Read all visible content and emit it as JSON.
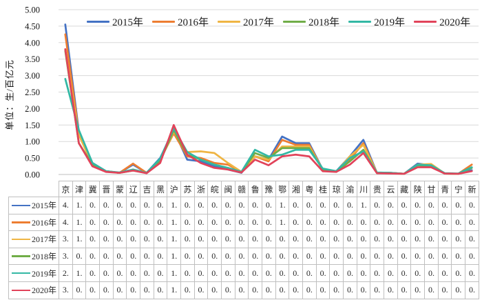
{
  "chart_data": {
    "type": "line",
    "title": "",
    "xlabel": "",
    "ylabel": "单位：生/百亿元",
    "ylim": [
      0,
      5
    ],
    "ytick_step": 0.5,
    "yticks": [
      "5.00",
      "4.50",
      "4.00",
      "3.50",
      "3.00",
      "2.50",
      "2.00",
      "1.50",
      "1.00",
      "0.50",
      "0.00"
    ],
    "grid": true,
    "legend_position": "top",
    "has_data_table": true,
    "categories": [
      "京",
      "津",
      "冀",
      "晋",
      "蒙",
      "辽",
      "吉",
      "黑",
      "沪",
      "苏",
      "浙",
      "皖",
      "闽",
      "赣",
      "鲁",
      "豫",
      "鄂",
      "湘",
      "粤",
      "桂",
      "琼",
      "渝",
      "川",
      "贵",
      "云",
      "藏",
      "陕",
      "甘",
      "青",
      "宁",
      "新"
    ],
    "series": [
      {
        "name": "2015年",
        "color": "#4472C4",
        "values": [
          4.55,
          1.3,
          0.35,
          0.1,
          0.05,
          0.3,
          0.05,
          0.5,
          1.35,
          0.45,
          0.4,
          0.25,
          0.15,
          0.05,
          0.55,
          0.45,
          1.15,
          0.95,
          0.95,
          0.15,
          0.1,
          0.55,
          1.05,
          0.05,
          0.05,
          0.02,
          0.33,
          0.28,
          0.03,
          0.02,
          0.13
        ]
      },
      {
        "name": "2016年",
        "color": "#ED7D31",
        "values": [
          4.25,
          1.25,
          0.3,
          0.1,
          0.05,
          0.33,
          0.05,
          0.45,
          1.25,
          0.55,
          0.5,
          0.35,
          0.3,
          0.08,
          0.55,
          0.4,
          1.05,
          0.9,
          0.9,
          0.15,
          0.1,
          0.45,
          0.95,
          0.05,
          0.05,
          0.02,
          0.3,
          0.3,
          0.03,
          0.02,
          0.3
        ]
      },
      {
        "name": "2017年",
        "color": "#EFB544",
        "values": [
          3.8,
          1.2,
          0.3,
          0.1,
          0.05,
          0.15,
          0.05,
          0.42,
          1.3,
          0.68,
          0.7,
          0.65,
          0.35,
          0.08,
          0.55,
          0.45,
          0.85,
          0.85,
          0.85,
          0.15,
          0.08,
          0.55,
          0.9,
          0.05,
          0.04,
          0.02,
          0.3,
          0.32,
          0.03,
          0.02,
          0.2
        ]
      },
      {
        "name": "2018年",
        "color": "#70AD47",
        "values": [
          3.75,
          0.95,
          0.3,
          0.1,
          0.05,
          0.12,
          0.05,
          0.4,
          1.35,
          0.6,
          0.45,
          0.3,
          0.2,
          0.06,
          0.65,
          0.5,
          0.8,
          0.8,
          0.8,
          0.15,
          0.08,
          0.4,
          0.75,
          0.05,
          0.04,
          0.02,
          0.28,
          0.25,
          0.03,
          0.02,
          0.2
        ]
      },
      {
        "name": "2019年",
        "color": "#33B8A4",
        "values": [
          2.9,
          1.35,
          0.35,
          0.1,
          0.06,
          0.15,
          0.05,
          0.48,
          1.4,
          0.68,
          0.45,
          0.3,
          0.2,
          0.08,
          0.75,
          0.55,
          0.6,
          0.75,
          0.75,
          0.18,
          0.1,
          0.5,
          0.7,
          0.06,
          0.05,
          0.02,
          0.3,
          0.28,
          0.04,
          0.03,
          0.22
        ]
      },
      {
        "name": "2020年",
        "color": "#E1435A",
        "values": [
          3.8,
          0.95,
          0.25,
          0.08,
          0.05,
          0.12,
          0.04,
          0.35,
          1.5,
          0.6,
          0.35,
          0.2,
          0.15,
          0.06,
          0.45,
          0.28,
          0.55,
          0.6,
          0.55,
          0.1,
          0.08,
          0.3,
          0.65,
          0.04,
          0.03,
          0.02,
          0.22,
          0.22,
          0.03,
          0.02,
          0.1
        ]
      }
    ]
  },
  "legend": {
    "items": [
      "2015年",
      "2016年",
      "2017年",
      "2018年",
      "2019年",
      "2020年"
    ]
  },
  "table": {
    "corner_label": "",
    "column_headers": [
      "京",
      "津",
      "冀",
      "晋",
      "蒙",
      "辽",
      "吉",
      "黑",
      "沪",
      "苏",
      "浙",
      "皖",
      "闽",
      "赣",
      "鲁",
      "豫",
      "鄂",
      "湘",
      "粤",
      "桂",
      "琼",
      "渝",
      "川",
      "贵",
      "云",
      "藏",
      "陕",
      "甘",
      "青",
      "宁",
      "新"
    ],
    "rows": [
      {
        "label": "2015年",
        "color": "#4472C4",
        "cells": [
          "4.",
          "1.",
          "0.",
          "0.",
          "0.",
          "0.",
          "0.",
          "0.",
          "1.",
          "0.",
          "0.",
          "0.",
          "0.",
          "0.",
          "0.",
          "0.",
          "1.",
          "0.",
          "0.",
          "0.",
          "0.",
          "0.",
          "1.",
          "0.",
          "0.",
          "0.",
          "0.",
          "0.",
          "0.",
          "0.",
          "0."
        ]
      },
      {
        "label": "2016年",
        "color": "#ED7D31",
        "cells": [
          "4.",
          "1.",
          "0.",
          "0.",
          "0.",
          "0.",
          "0.",
          "0.",
          "1.",
          "0.",
          "0.",
          "0.",
          "0.",
          "0.",
          "0.",
          "0.",
          "1.",
          "0.",
          "0.",
          "0.",
          "0.",
          "0.",
          "0.",
          "0.",
          "0.",
          "0.",
          "0.",
          "0.",
          "0.",
          "0.",
          "0."
        ]
      },
      {
        "label": "2017年",
        "color": "#EFB544",
        "cells": [
          "3.",
          "1.",
          "0.",
          "0.",
          "0.",
          "0.",
          "0.",
          "0.",
          "1.",
          "0.",
          "0.",
          "0.",
          "0.",
          "0.",
          "0.",
          "0.",
          "0.",
          "0.",
          "0.",
          "0.",
          "0.",
          "0.",
          "0.",
          "0.",
          "0.",
          "0.",
          "0.",
          "0.",
          "0.",
          "0.",
          "0."
        ]
      },
      {
        "label": "2018年",
        "color": "#70AD47",
        "cells": [
          "3.",
          "0.",
          "0.",
          "0.",
          "0.",
          "0.",
          "0.",
          "0.",
          "1.",
          "0.",
          "0.",
          "0.",
          "0.",
          "0.",
          "0.",
          "0.",
          "0.",
          "0.",
          "0.",
          "0.",
          "0.",
          "0.",
          "0.",
          "0.",
          "0.",
          "0.",
          "0.",
          "0.",
          "0.",
          "0.",
          "0."
        ]
      },
      {
        "label": "2019年",
        "color": "#33B8A4",
        "cells": [
          "2.",
          "1.",
          "0.",
          "0.",
          "0.",
          "0.",
          "0.",
          "0.",
          "1.",
          "0.",
          "0.",
          "0.",
          "0.",
          "0.",
          "0.",
          "0.",
          "0.",
          "0.",
          "0.",
          "0.",
          "0.",
          "0.",
          "0.",
          "0.",
          "0.",
          "0.",
          "0.",
          "0.",
          "0.",
          "0.",
          "0."
        ]
      },
      {
        "label": "2020年",
        "color": "#E1435A",
        "cells": [
          "3.",
          "0.",
          "0.",
          "0.",
          "0.",
          "0.",
          "0.",
          "0.",
          "1.",
          "0.",
          "0.",
          "0.",
          "0.",
          "0.",
          "0.",
          "0.",
          "0.",
          "0.",
          "0.",
          "0.",
          "0.",
          "0.",
          "0.",
          "0.",
          "0.",
          "0.",
          "0.",
          "0.",
          "0.",
          "0.",
          "0."
        ]
      }
    ]
  },
  "colors": {
    "gridline": "#d9d9d9",
    "axis_line": "#bfbfbf",
    "table_border": "#bfbfbf",
    "text": "#1a1a1a"
  }
}
